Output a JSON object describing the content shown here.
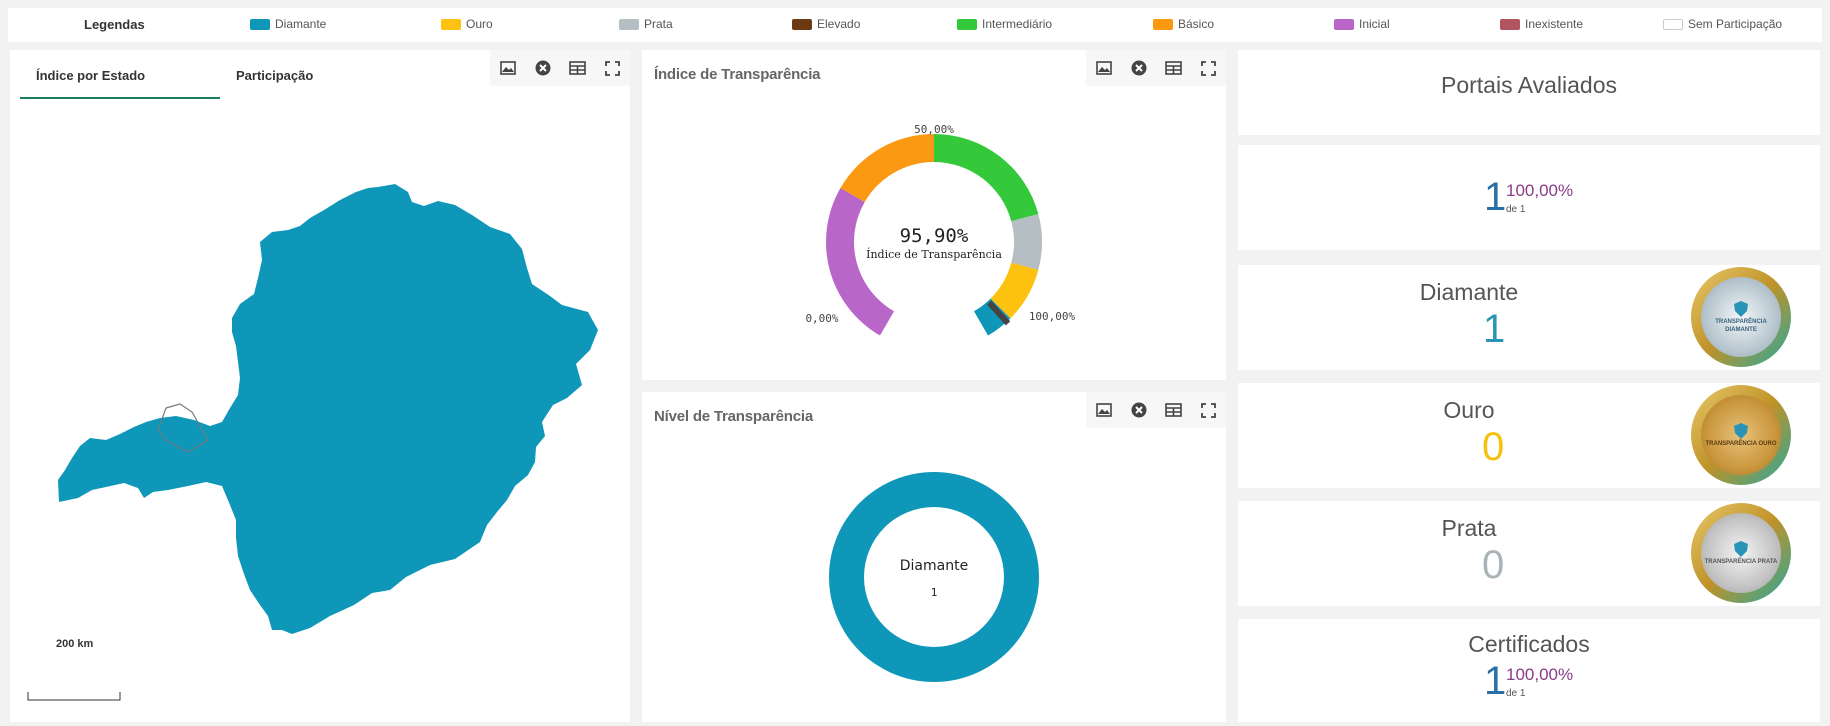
{
  "legend": {
    "title": "Legendas",
    "items": [
      {
        "label": "Diamante",
        "color": "#0e97b9"
      },
      {
        "label": "Ouro",
        "color": "#fdc20f"
      },
      {
        "label": "Prata",
        "color": "#b5bec2"
      },
      {
        "label": "Elevado",
        "color": "#6b3a14"
      },
      {
        "label": "Intermediário",
        "color": "#34c93a"
      },
      {
        "label": "Básico",
        "color": "#fb9a12"
      },
      {
        "label": "Inicial",
        "color": "#b966c9"
      },
      {
        "label": "Inexistente",
        "color": "#b05560"
      },
      {
        "label": "Sem Participação",
        "color": "#ffffff"
      }
    ]
  },
  "map_panel": {
    "tabs": [
      "Índice por Estado",
      "Participação"
    ],
    "active_tab": "Índice por Estado",
    "scale_label": "200 km",
    "state_color": "#0e97b9"
  },
  "gauge_panel": {
    "title": "Índice de Transparência",
    "value_label": "95,90%",
    "value_caption": "Índice de Transparência",
    "label_min": "0,00%",
    "label_mid": "50,00%",
    "label_max": "100,00%",
    "value": 95.9
  },
  "donut_panel": {
    "title": "Nível de Transparência",
    "center_label": "Diamante",
    "center_value": "1"
  },
  "chart_data": [
    {
      "type": "gauge",
      "title": "Índice de Transparência",
      "range": [
        0,
        100
      ],
      "value": 95.9,
      "bands": [
        {
          "name": "Inicial",
          "from": 0,
          "to": 30,
          "color": "#b966c9"
        },
        {
          "name": "Básico",
          "from": 30,
          "to": 50,
          "color": "#fb9a12"
        },
        {
          "name": "Intermediário",
          "from": 50,
          "to": 75,
          "color": "#34c93a"
        },
        {
          "name": "Prata",
          "from": 75,
          "to": 85,
          "color": "#b5bec2"
        },
        {
          "name": "Ouro",
          "from": 85,
          "to": 95,
          "color": "#fdc20f"
        },
        {
          "name": "Diamante",
          "from": 95,
          "to": 100,
          "color": "#0e97b9"
        }
      ]
    },
    {
      "type": "pie",
      "title": "Nível de Transparência",
      "categories": [
        "Diamante"
      ],
      "values": [
        1
      ],
      "colors": [
        "#0e97b9"
      ]
    }
  ],
  "cards": {
    "portais": {
      "title": "Portais Avaliados",
      "count": "1",
      "percent": "100,00%",
      "of": "de 1"
    },
    "diamante": {
      "title": "Diamante",
      "count": "1",
      "color": "#2a94b6",
      "medal_label": "TRANSPARÊNCIA DIAMANTE"
    },
    "ouro": {
      "title": "Ouro",
      "count": "0",
      "color": "#f4c20d",
      "medal_label": "TRANSPARÊNCIA OURO"
    },
    "prata": {
      "title": "Prata",
      "count": "0",
      "color": "#aab4b8",
      "medal_label": "TRANSPARÊNCIA PRATA"
    },
    "certificados": {
      "title": "Certificados",
      "count": "1",
      "percent": "100,00%",
      "of": "de 1"
    }
  }
}
